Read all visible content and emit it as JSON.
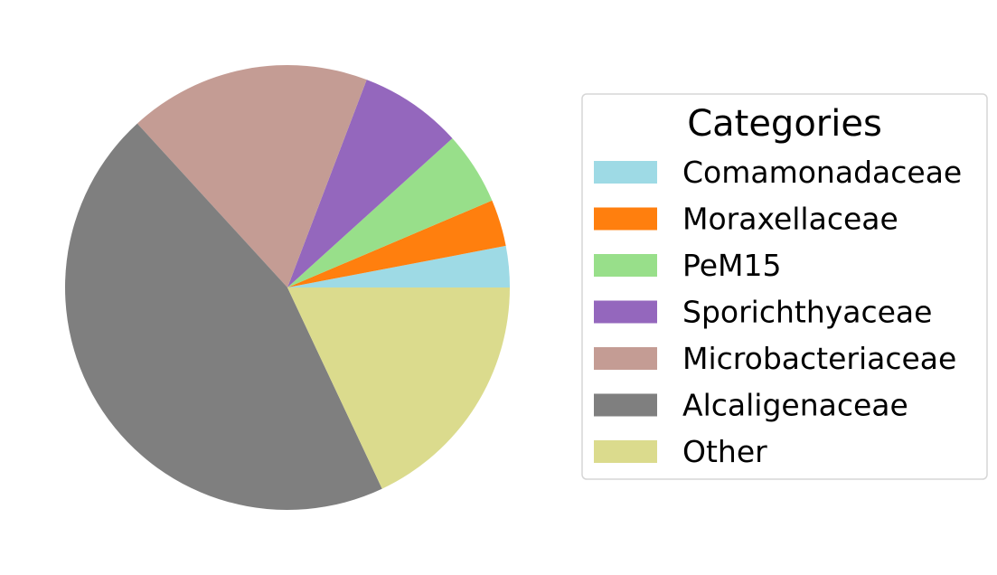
{
  "chart_data": {
    "type": "pie",
    "title": "",
    "legend": {
      "title": "Categories",
      "placement": "right"
    },
    "start_angle_deg": 0,
    "direction": "counterclockwise",
    "slices": [
      {
        "label": "Comamonadaceae",
        "value": 3.0,
        "color": "#9edae5"
      },
      {
        "label": "Moraxellaceae",
        "value": 3.4,
        "color": "#ff7f0e"
      },
      {
        "label": "PeM15",
        "value": 5.3,
        "color": "#98df8a"
      },
      {
        "label": "Sporichthyaceae",
        "value": 7.5,
        "color": "#9467bd"
      },
      {
        "label": "Microbacteriaceae",
        "value": 17.6,
        "color": "#c49c94"
      },
      {
        "label": "Alcaligenaceae",
        "value": 45.2,
        "color": "#7f7f7f"
      },
      {
        "label": "Other",
        "value": 18.0,
        "color": "#dbdb8d"
      }
    ]
  }
}
